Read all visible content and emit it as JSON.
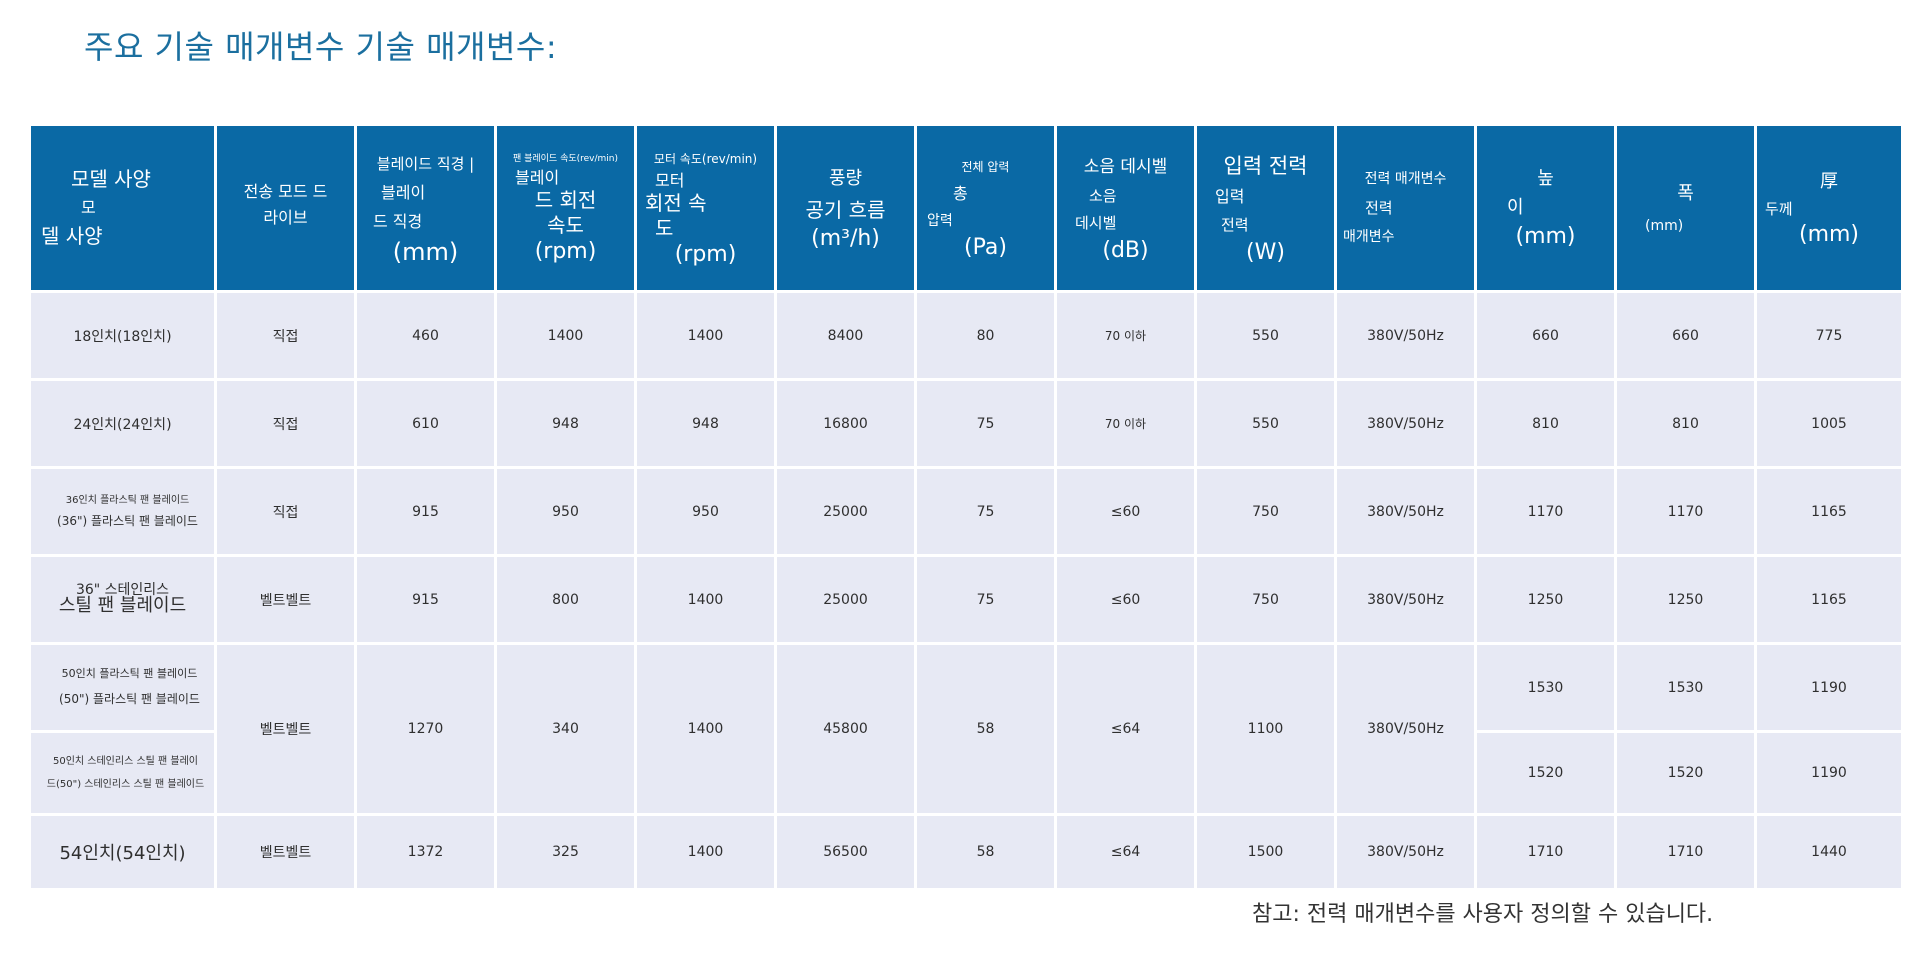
{
  "title": "주요 기술 매개변수 기술 매개변수:",
  "headers": {
    "model": [
      "모델 사양",
      "모",
      "델 사양"
    ],
    "drive": [
      "전송 모드 드",
      "라이브"
    ],
    "blade_diameter": [
      "블레이드 직경 |",
      "블레이",
      "드 직경",
      "(mm)"
    ],
    "blade_speed": [
      "팬 블레이드 속도(rev/min)",
      "블레이",
      "드 회전",
      "속도",
      "(rpm)"
    ],
    "motor_speed": [
      "모터 속도(rev/min)",
      "모터",
      "회전 속",
      "도",
      "(rpm)"
    ],
    "airflow": [
      "풍량",
      "공기 흐름",
      "(m³/h)"
    ],
    "pressure": [
      "전체 압력",
      "총",
      "압력",
      "(Pa)"
    ],
    "noise": [
      "소음 데시벨",
      "소음",
      "데시벨",
      "(dB)"
    ],
    "input_power": [
      "입력 전력",
      "입력",
      "전력",
      "(W)"
    ],
    "power_param": [
      "전력 매개변수",
      "전력",
      "매개변수"
    ],
    "height": [
      "높",
      "이",
      "(mm)"
    ],
    "width": [
      "폭",
      "(mm)"
    ],
    "thickness": [
      "厚",
      "두께",
      "(mm)"
    ]
  },
  "rows": [
    {
      "model": [
        "18인치(18인치)"
      ],
      "drive": "직접",
      "blade_diameter": "460",
      "blade_speed": "1400",
      "motor_speed": "1400",
      "airflow": "8400",
      "pressure": "80",
      "noise": "70 이하",
      "input_power": "550",
      "power_param": "380V/50Hz",
      "height": "660",
      "width": "660",
      "thickness": "775"
    },
    {
      "model": [
        "24인치(24인치)"
      ],
      "drive": "직접",
      "blade_diameter": "610",
      "blade_speed": "948",
      "motor_speed": "948",
      "airflow": "16800",
      "pressure": "75",
      "noise": "70 이하",
      "input_power": "550",
      "power_param": "380V/50Hz",
      "height": "810",
      "width": "810",
      "thickness": "1005"
    },
    {
      "model": [
        "36인치 플라스틱 팬 블레이드",
        "(36\") 플라스틱 팬 블레이드"
      ],
      "drive": "직접",
      "blade_diameter": "915",
      "blade_speed": "950",
      "motor_speed": "950",
      "airflow": "25000",
      "pressure": "75",
      "noise": "≤60",
      "input_power": "750",
      "power_param": "380V/50Hz",
      "height": "1170",
      "width": "1170",
      "thickness": "1165"
    },
    {
      "model": [
        "36\" 스테인리스",
        "스틸 팬 블레이드"
      ],
      "drive": "벨트벨트",
      "blade_diameter": "915",
      "blade_speed": "800",
      "motor_speed": "1400",
      "airflow": "25000",
      "pressure": "75",
      "noise": "≤60",
      "input_power": "750",
      "power_param": "380V/50Hz",
      "height": "1250",
      "width": "1250",
      "thickness": "1165"
    },
    {
      "model": [
        "50인치 플라스틱 팬 블레이드",
        "(50\") 플라스틱 팬 블레이드"
      ],
      "model_b": [
        "50인치 스테인리스 스틸 팬 블레이",
        "드(50\") 스테인리스 스틸 팬 블레이드"
      ],
      "drive": "벨트벨트",
      "blade_diameter": "1270",
      "blade_speed": "340",
      "motor_speed": "1400",
      "airflow": "45800",
      "pressure": "58",
      "noise": "≤64",
      "input_power": "1100",
      "power_param": "380V/50Hz",
      "height": "1530",
      "width": "1530",
      "thickness": "1190",
      "height_b": "1520",
      "width_b": "1520",
      "thickness_b": "1190"
    },
    {
      "model": [
        "54인치(54인치)"
      ],
      "drive": "벨트벨트",
      "blade_diameter": "1372",
      "blade_speed": "325",
      "motor_speed": "1400",
      "airflow": "56500",
      "pressure": "58",
      "noise": "≤64",
      "input_power": "1500",
      "power_param": "380V/50Hz",
      "height": "1710",
      "width": "1710",
      "thickness": "1440"
    }
  ],
  "note": "참고: 전력 매개변수를 사용자 정의할 수 있습니다."
}
